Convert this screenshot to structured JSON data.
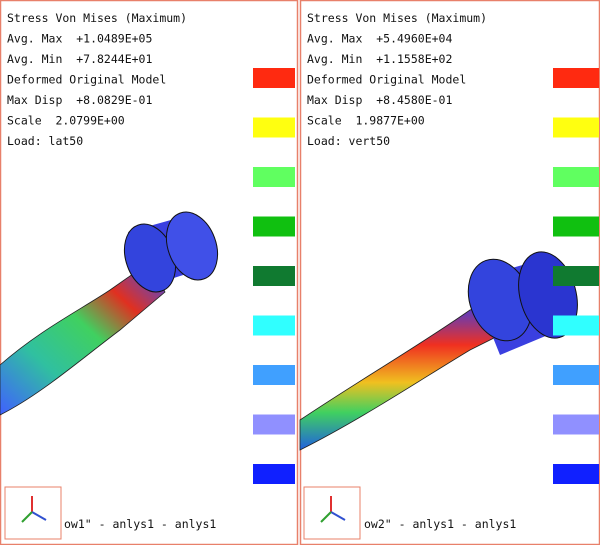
{
  "panels": [
    {
      "lines": [
        "Stress Von Mises (Maximum)",
        "Avg. Max  +1.0489E+05",
        "Avg. Min  +7.8244E+01",
        "Deformed Original Model",
        "Max Disp  +8.0829E-01",
        "Scale  2.0799E+00",
        "Load: lat50"
      ],
      "caption": "ow1\" - anlys1 - anlys1"
    },
    {
      "lines": [
        "Stress Von Mises (Maximum)",
        "Avg. Max  +5.4960E+04",
        "Avg. Min  +1.1558E+02",
        "Deformed Original Model",
        "Max Disp  +8.4580E-01",
        "Scale  1.9877E+00",
        "Load: vert50"
      ],
      "caption": "ow2\" - anlys1 - anlys1"
    }
  ]
}
